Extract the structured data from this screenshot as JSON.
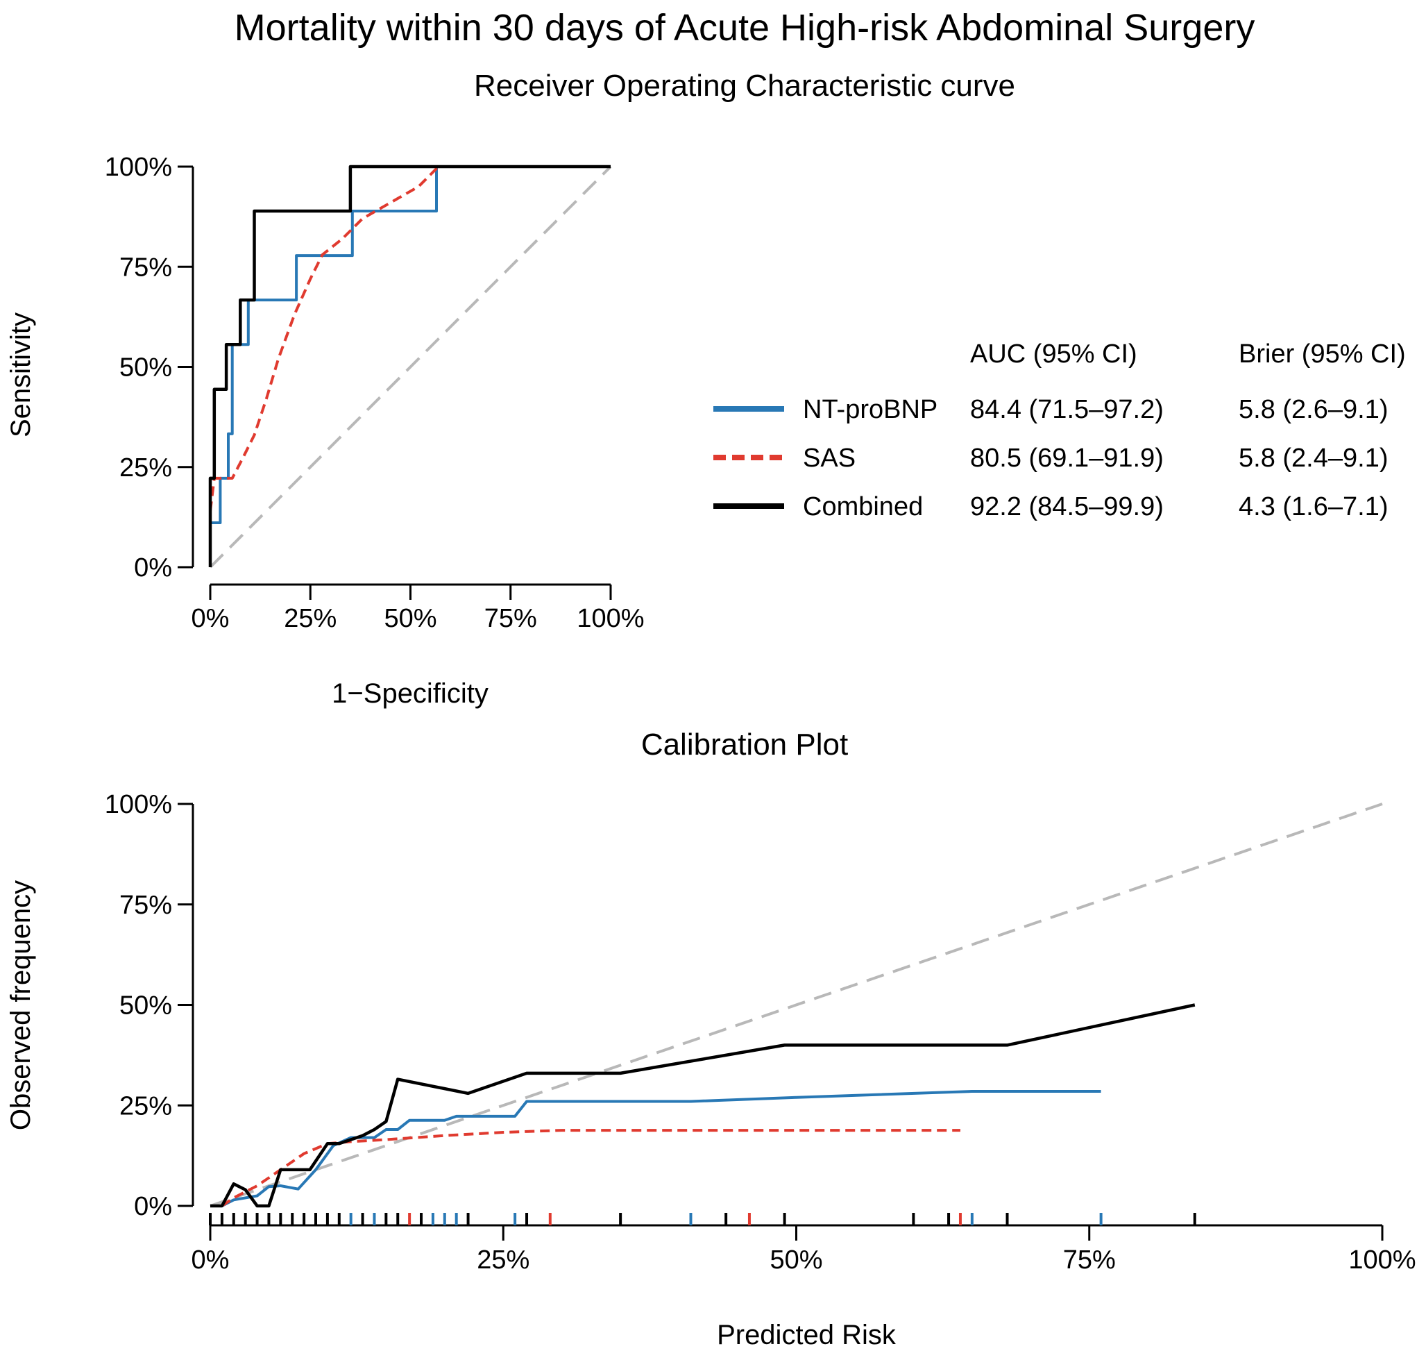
{
  "title": "Mortality within 30 days of Acute High-risk Abdominal Surgery",
  "colors": {
    "nt_probnp": "#2878b5",
    "sas": "#e03a2f",
    "combined": "#000000",
    "reference": "#b8b8b8"
  },
  "chart_data": [
    {
      "type": "line",
      "subtitle": "Receiver Operating Characteristic curve",
      "xlabel": "1−Specificity",
      "ylabel": "Sensitivity",
      "xlim": [
        0,
        100
      ],
      "ylim": [
        0,
        100
      ],
      "x_ticks": [
        "0%",
        "25%",
        "50%",
        "75%",
        "100%"
      ],
      "y_ticks": [
        "0%",
        "25%",
        "50%",
        "75%",
        "100%"
      ],
      "grid": false,
      "legend_position": "right",
      "legend_headers": {
        "auc": "AUC (95% CI)",
        "brier": "Brier (95% CI)"
      },
      "series": [
        {
          "name": "NT-proBNP",
          "auc": "84.4 (71.5–97.2)",
          "brier": "5.8 (2.6–9.1)",
          "style": "solid",
          "x": [
            0,
            0,
            1,
            1,
            2.5,
            2.5,
            4.5,
            4.5,
            5.5,
            5.5,
            8,
            8,
            9.5,
            9.5,
            21.5,
            21.5,
            35.5,
            35.5,
            56.5,
            56.5,
            100
          ],
          "y": [
            0,
            11.1,
            11.1,
            11.1,
            11.1,
            22.2,
            22.2,
            33.3,
            33.3,
            55.6,
            55.6,
            55.6,
            55.6,
            66.7,
            66.7,
            77.8,
            77.8,
            88.9,
            88.9,
            100,
            100
          ]
        },
        {
          "name": "SAS",
          "auc": "80.5 (69.1–91.9)",
          "brier": "5.8 (2.4–9.1)",
          "style": "dashed",
          "x": [
            0,
            1,
            5.5,
            8,
            11,
            14,
            17,
            21,
            25,
            28,
            33,
            38,
            45,
            52,
            57
          ],
          "y": [
            14,
            22.2,
            22.2,
            27,
            33,
            42,
            52,
            63,
            72,
            78,
            82,
            87,
            91,
            95,
            100
          ]
        },
        {
          "name": "Combined",
          "auc": "92.2 (84.5–99.9)",
          "brier": "4.3 (1.6–7.1)",
          "style": "solid",
          "x": [
            0,
            0,
            1,
            1,
            4,
            4,
            7.5,
            7.5,
            11,
            11,
            35,
            35,
            100
          ],
          "y": [
            0,
            22.2,
            22.2,
            44.4,
            44.4,
            55.6,
            55.6,
            66.7,
            66.7,
            88.9,
            88.9,
            100,
            100
          ]
        },
        {
          "name": "",
          "style": "reference-dashed",
          "x": [
            0,
            100
          ],
          "y": [
            0,
            100
          ]
        }
      ]
    },
    {
      "type": "line",
      "subtitle": "Calibration Plot",
      "xlabel": "Predicted Risk",
      "ylabel": "Observed frequency",
      "xlim": [
        0,
        100
      ],
      "ylim": [
        0,
        100
      ],
      "x_ticks": [
        "0%",
        "25%",
        "50%",
        "75%",
        "100%"
      ],
      "y_ticks": [
        "0%",
        "25%",
        "50%",
        "75%",
        "100%"
      ],
      "grid": false,
      "series": [
        {
          "name": "NT-proBNP",
          "style": "solid",
          "x": [
            0,
            1,
            2,
            4,
            5,
            6,
            7.5,
            9,
            10.5,
            12,
            14,
            15,
            16,
            17,
            20,
            21,
            22,
            26,
            27,
            41,
            50,
            65,
            76
          ],
          "y": [
            0,
            0,
            1.5,
            2.5,
            4.8,
            5,
            4.2,
            9,
            15,
            17,
            17,
            19,
            19,
            21.3,
            21.3,
            22.3,
            22.3,
            22.3,
            26,
            26,
            27,
            28.5,
            28.5
          ]
        },
        {
          "name": "SAS",
          "style": "dashed",
          "x": [
            1,
            2,
            4,
            6,
            8,
            10,
            12,
            15,
            20,
            25,
            30,
            40,
            55,
            64
          ],
          "y": [
            0,
            2,
            5,
            9,
            13,
            15.5,
            16,
            16.5,
            17.5,
            18.3,
            18.8,
            18.8,
            18.8,
            18.8
          ]
        },
        {
          "name": "Combined",
          "style": "solid",
          "x": [
            0,
            1,
            2,
            3,
            4,
            5,
            6,
            7,
            8.5,
            10,
            11,
            12,
            13,
            14,
            15,
            16,
            22,
            27,
            35,
            49,
            68,
            84
          ],
          "y": [
            0,
            0,
            5.5,
            4,
            0,
            0,
            9,
            9,
            9,
            15.5,
            15.5,
            16.5,
            17.5,
            19,
            21,
            31.5,
            28,
            33,
            33,
            40,
            40,
            50
          ]
        },
        {
          "name": "",
          "style": "reference-dashed",
          "x": [
            0,
            100
          ],
          "y": [
            0,
            100
          ]
        }
      ],
      "rug": {
        "nt_probnp": [
          12,
          14,
          19,
          20,
          21,
          26,
          41,
          65,
          76
        ],
        "sas": [
          17,
          29,
          46,
          64
        ],
        "combined": [
          0,
          1,
          2,
          3,
          4,
          5,
          6,
          7,
          8,
          9,
          10,
          11,
          13,
          15,
          16,
          18,
          22,
          27,
          35,
          44,
          49,
          60,
          63,
          68,
          84
        ]
      }
    }
  ]
}
